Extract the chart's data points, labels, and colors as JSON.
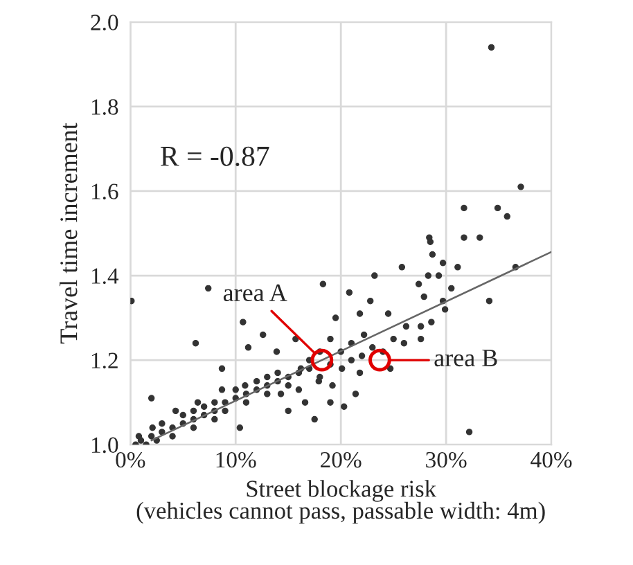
{
  "chart_data": {
    "type": "scatter",
    "xlabel": "Street blockage risk\n(vehicles cannot pass, passable width: 4m)",
    "ylabel": "Travel time increment",
    "xlim": [
      0,
      40
    ],
    "ylim": [
      1.0,
      2.0
    ],
    "xticks": [
      {
        "value": 0,
        "label": "0%"
      },
      {
        "value": 10,
        "label": "10%"
      },
      {
        "value": 20,
        "label": "20%"
      },
      {
        "value": 30,
        "label": "30%"
      },
      {
        "value": 40,
        "label": "40%"
      }
    ],
    "yticks": [
      {
        "value": 1.0,
        "label": "1.0"
      },
      {
        "value": 1.2,
        "label": "1.2"
      },
      {
        "value": 1.4,
        "label": "1.4"
      },
      {
        "value": 1.6,
        "label": "1.6"
      },
      {
        "value": 1.8,
        "label": "1.8"
      },
      {
        "value": 2.0,
        "label": "2.0"
      }
    ],
    "grid": true,
    "series": [
      {
        "marker": "circle",
        "color": "#333333",
        "x": [
          34.3,
          0.1,
          7.4,
          6.2,
          10.7,
          8.7,
          11.2,
          12.6,
          2.0,
          18.3,
          23.2,
          25.8,
          28.4,
          17.5,
          20.3,
          21.4,
          10.4,
          37.1,
          31.7,
          34.9,
          35.8,
          31.7,
          33.2,
          28.5,
          28.7,
          29.7,
          31.1,
          36.6,
          28.3,
          29.3,
          27.4,
          30.5,
          27.9,
          29.7,
          34.1,
          29.9,
          27.6,
          28.6,
          27.6,
          32.2,
          19.5,
          20.8,
          21.8,
          22.8,
          22.2,
          24.5,
          26.2,
          20.1,
          21.8,
          24.7,
          19.2,
          17.9,
          15.7,
          16.2,
          14.3,
          16.6,
          13.9,
          13.0,
          10.9,
          8.7,
          6.4,
          4.3,
          2.1,
          0.8,
          1,
          2,
          3,
          3,
          4,
          5,
          5,
          6,
          6,
          7,
          7,
          8,
          8,
          9,
          9,
          10,
          10,
          11,
          11,
          12,
          12,
          13,
          13,
          14,
          14,
          15,
          15,
          16,
          16,
          17,
          17,
          18,
          18,
          19,
          19,
          20,
          21,
          21,
          22,
          23,
          24,
          25,
          26,
          19,
          15,
          0.5,
          1.5,
          2.5,
          4,
          6,
          8
        ],
        "values": [
          1.94,
          1.34,
          1.37,
          1.24,
          1.29,
          1.18,
          1.23,
          1.26,
          1.11,
          1.38,
          1.4,
          1.42,
          1.49,
          1.06,
          1.09,
          1.12,
          1.04,
          1.61,
          1.56,
          1.56,
          1.54,
          1.49,
          1.49,
          1.48,
          1.45,
          1.43,
          1.42,
          1.42,
          1.4,
          1.4,
          1.38,
          1.37,
          1.35,
          1.34,
          1.34,
          1.32,
          1.28,
          1.29,
          1.25,
          1.03,
          1.3,
          1.36,
          1.31,
          1.34,
          1.26,
          1.31,
          1.28,
          1.18,
          1.17,
          1.18,
          1.14,
          1.15,
          1.25,
          1.18,
          1.12,
          1.1,
          1.22,
          1.16,
          1.14,
          1.13,
          1.1,
          1.08,
          1.04,
          1.02,
          1.01,
          1.02,
          1.03,
          1.05,
          1.04,
          1.05,
          1.07,
          1.06,
          1.08,
          1.07,
          1.09,
          1.08,
          1.1,
          1.1,
          1.08,
          1.11,
          1.13,
          1.12,
          1.1,
          1.13,
          1.15,
          1.14,
          1.12,
          1.15,
          1.17,
          1.16,
          1.14,
          1.17,
          1.13,
          1.18,
          1.2,
          1.16,
          1.22,
          1.19,
          1.25,
          1.22,
          1.2,
          1.24,
          1.21,
          1.23,
          1.22,
          1.25,
          1.24,
          1.1,
          1.08,
          1.0,
          1.0,
          1.01,
          1.02,
          1.04,
          1.06
        ]
      },
      {
        "type": "line",
        "color": "#666666",
        "x": [
          2,
          40
        ],
        "values": [
          1.01,
          1.456
        ]
      }
    ],
    "annotations": [
      "R = -0.87",
      {
        "text": "area A",
        "x": 18.2,
        "y": 1.2
      },
      {
        "text": "area B",
        "x": 23.7,
        "y": 1.2
      }
    ]
  }
}
